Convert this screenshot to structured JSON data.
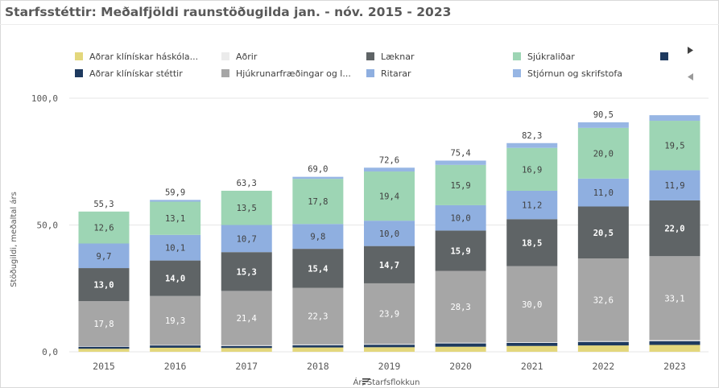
{
  "title": "Starfsstéttir: Meðalfjöldi raunstöðugilda jan. - nóv. 2015 - 2023",
  "chart_data": {
    "type": "bar",
    "stacked": true,
    "title": "Starfsstéttir: Meðalfjöldi raunstöðugilda jan. - nóv. 2015 - 2023",
    "xlabel": "Ár, Starfsflokkun",
    "ylabel": "Stöðugildi, meðaltal árs",
    "ylim": [
      0,
      100
    ],
    "yticks": [
      "0,0",
      "50,0",
      "100,0"
    ],
    "ytick_values": [
      0,
      50,
      100
    ],
    "grid": true,
    "legend_position": "top",
    "categories": [
      "2015",
      "2016",
      "2017",
      "2018",
      "2019",
      "2020",
      "2021",
      "2022",
      "2023"
    ],
    "totals": [
      "55,3",
      "59,9",
      "63,3",
      "69,0",
      "72,6",
      "75,4",
      "82,3",
      "90,5",
      "93,3"
    ],
    "totals_visible": [
      true,
      true,
      true,
      true,
      true,
      true,
      true,
      true,
      false
    ],
    "series": [
      {
        "name": "Aðrar klínískar háskóla...",
        "color": "#e3d77c",
        "values": [
          1.2,
          1.6,
          1.5,
          1.7,
          1.8,
          2.0,
          2.3,
          2.5,
          2.7
        ],
        "labels": [
          "",
          "",
          "",
          "",
          "",
          "",
          "",
          "",
          ""
        ]
      },
      {
        "name": "Aðrar klínískar stéttir",
        "color": "#1e3a5f",
        "values": [
          0.8,
          0.9,
          0.8,
          0.9,
          1.0,
          1.3,
          1.2,
          1.4,
          1.5
        ],
        "labels": [
          "",
          "",
          "",
          "",
          "",
          "",
          "",
          "",
          ""
        ]
      },
      {
        "name": "Aðrir",
        "color": "#ebebeb",
        "values": [
          0.2,
          0.2,
          0.3,
          0.3,
          0.3,
          0.3,
          0.3,
          0.3,
          0.4
        ],
        "labels": [
          "",
          "",
          "",
          "",
          "",
          "",
          "",
          "",
          ""
        ]
      },
      {
        "name": "Hjúkrunarfræðingar og l...",
        "color": "#a6a6a6",
        "values": [
          17.8,
          19.3,
          21.4,
          22.3,
          23.9,
          28.3,
          30.0,
          32.6,
          33.1
        ],
        "labels": [
          "17,8",
          "19,3",
          "21,4",
          "22,3",
          "23,9",
          "28,3",
          "30,0",
          "32,6",
          "33,1"
        ]
      },
      {
        "name": "Læknar",
        "color": "#5f6466",
        "values": [
          13.0,
          14.0,
          15.3,
          15.4,
          14.7,
          15.9,
          18.5,
          20.5,
          22.0
        ],
        "labels": [
          "13,0",
          "14,0",
          "15,3",
          "15,4",
          "14,7",
          "15,9",
          "18,5",
          "20,5",
          "22,0"
        ]
      },
      {
        "name": "Ritarar",
        "color": "#8fafe0",
        "values": [
          9.7,
          10.1,
          10.7,
          9.8,
          10.0,
          10.0,
          11.2,
          11.0,
          11.9
        ],
        "labels": [
          "9,7",
          "10,1",
          "10,7",
          "9,8",
          "10,0",
          "10,0",
          "11,2",
          "11,0",
          "11,9"
        ]
      },
      {
        "name": "Sjúkraliðar",
        "color": "#9dd5b4",
        "values": [
          12.6,
          13.1,
          13.5,
          17.8,
          19.4,
          15.9,
          16.9,
          20.0,
          19.5
        ],
        "labels": [
          "12,6",
          "13,1",
          "13,5",
          "17,8",
          "19,4",
          "15,9",
          "16,9",
          "20,0",
          "19,5"
        ]
      },
      {
        "name": "Stjórnun og skrifstofa",
        "color": "#97b6e4",
        "values": [
          0.0,
          0.7,
          0.0,
          0.8,
          1.5,
          1.7,
          1.9,
          2.2,
          2.2
        ],
        "labels": [
          "",
          "",
          "",
          "",
          "",
          "",
          "",
          "",
          ""
        ]
      }
    ],
    "legend": {
      "order": [
        0,
        2,
        4,
        6,
        8,
        1,
        3,
        5,
        7
      ],
      "extra_entry_color": "#1e3a5f",
      "label_colors": {
        "dark": "#ffffff",
        "light": "#404040"
      }
    }
  }
}
